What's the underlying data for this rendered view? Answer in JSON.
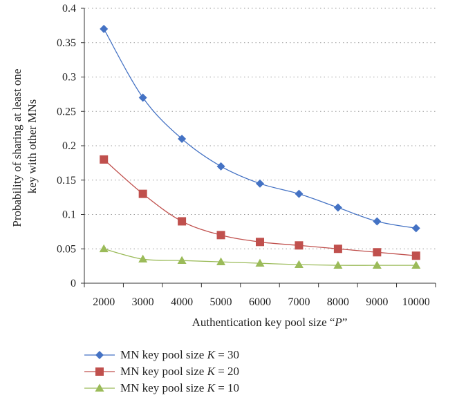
{
  "chart_data": {
    "type": "line",
    "x": [
      2000,
      3000,
      4000,
      5000,
      6000,
      7000,
      8000,
      9000,
      10000
    ],
    "x_tick_labels": [
      "2000",
      "3000",
      "4000",
      "5000",
      "6000",
      "7000",
      "8000",
      "9000",
      "10000"
    ],
    "y_ticks": [
      0,
      0.05,
      0.1,
      0.15,
      0.2,
      0.25,
      0.3,
      0.35,
      0.4
    ],
    "y_tick_labels": [
      "0",
      "0.05",
      "0.1",
      "0.15",
      "0.2",
      "0.25",
      "0.3",
      "0.35",
      "0.4"
    ],
    "ylim": [
      0,
      0.4
    ],
    "xlabel_prefix": "Authentication key pool size “",
    "xlabel_var": "P",
    "xlabel_suffix": "”",
    "ylabel_line1": "Probability of sharing at least one",
    "ylabel_line2": "key with other MNs",
    "grid": "horizontal dotted",
    "legend_position": "bottom",
    "series": [
      {
        "name": "MN key pool size K = 30",
        "legend_prefix": "MN key pool size ",
        "legend_var": "K",
        "legend_suffix": " = 30",
        "marker": "diamond",
        "color": "#4472c4",
        "values": [
          0.37,
          0.27,
          0.21,
          0.17,
          0.145,
          0.13,
          0.11,
          0.09,
          0.08
        ]
      },
      {
        "name": "MN key pool size K = 20",
        "legend_prefix": "MN key pool size ",
        "legend_var": "K",
        "legend_suffix": " = 20",
        "marker": "square",
        "color": "#c0504d",
        "values": [
          0.18,
          0.13,
          0.09,
          0.07,
          0.06,
          0.055,
          0.05,
          0.045,
          0.04
        ]
      },
      {
        "name": "MN key pool size K = 10",
        "legend_prefix": "MN key pool size ",
        "legend_var": "K",
        "legend_suffix": " = 10",
        "marker": "triangle",
        "color": "#9bbb59",
        "values": [
          0.05,
          0.035,
          0.033,
          0.031,
          0.029,
          0.027,
          0.026,
          0.026,
          0.026
        ]
      }
    ]
  }
}
